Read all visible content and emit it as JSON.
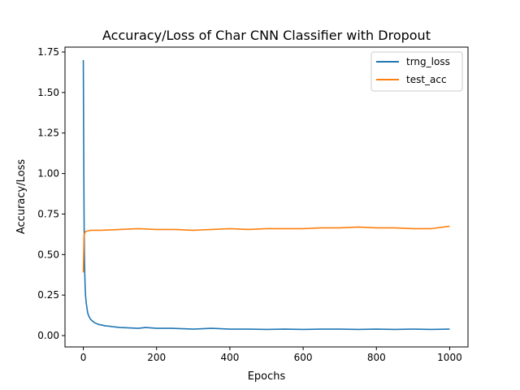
{
  "chart_data": {
    "type": "line",
    "title": "Accuracy/Loss of Char CNN Classifier with Dropout",
    "xlabel": "Epochs",
    "ylabel": "Accuracy/Loss",
    "xlim": [
      -50,
      1050
    ],
    "ylim": [
      -0.07,
      1.78
    ],
    "xticks": [
      0,
      200,
      400,
      600,
      800,
      1000
    ],
    "xtick_labels": [
      "0",
      "200",
      "400",
      "600",
      "800",
      "1000"
    ],
    "yticks": [
      0.0,
      0.25,
      0.5,
      0.75,
      1.0,
      1.25,
      1.5,
      1.75
    ],
    "ytick_labels": [
      "0.00",
      "0.25",
      "0.50",
      "0.75",
      "1.00",
      "1.25",
      "1.50",
      "1.75"
    ],
    "grid": false,
    "legend_position": "top-right",
    "series": [
      {
        "name": "trng_loss",
        "color": "#1f77b4",
        "x": [
          0,
          1,
          2,
          3,
          4,
          5,
          6,
          8,
          10,
          12,
          15,
          20,
          25,
          30,
          40,
          50,
          60,
          70,
          80,
          100,
          120,
          150,
          170,
          200,
          240,
          280,
          300,
          350,
          400,
          450,
          500,
          550,
          600,
          650,
          700,
          750,
          800,
          850,
          900,
          950,
          1000
        ],
        "y": [
          1.7,
          1.2,
          0.75,
          0.5,
          0.38,
          0.3,
          0.25,
          0.2,
          0.17,
          0.14,
          0.12,
          0.1,
          0.09,
          0.08,
          0.07,
          0.065,
          0.06,
          0.058,
          0.055,
          0.05,
          0.048,
          0.045,
          0.05,
          0.045,
          0.045,
          0.042,
          0.04,
          0.045,
          0.04,
          0.04,
          0.038,
          0.04,
          0.038,
          0.04,
          0.04,
          0.038,
          0.04,
          0.038,
          0.04,
          0.038,
          0.04
        ]
      },
      {
        "name": "test_acc",
        "color": "#ff7f0e",
        "x": [
          0,
          2,
          5,
          10,
          20,
          50,
          100,
          150,
          200,
          250,
          300,
          350,
          400,
          450,
          500,
          550,
          600,
          650,
          700,
          750,
          800,
          850,
          900,
          950,
          1000
        ],
        "y": [
          0.39,
          0.62,
          0.64,
          0.645,
          0.65,
          0.65,
          0.655,
          0.66,
          0.655,
          0.655,
          0.65,
          0.655,
          0.66,
          0.655,
          0.66,
          0.66,
          0.66,
          0.665,
          0.665,
          0.67,
          0.665,
          0.665,
          0.66,
          0.66,
          0.675
        ]
      }
    ]
  }
}
